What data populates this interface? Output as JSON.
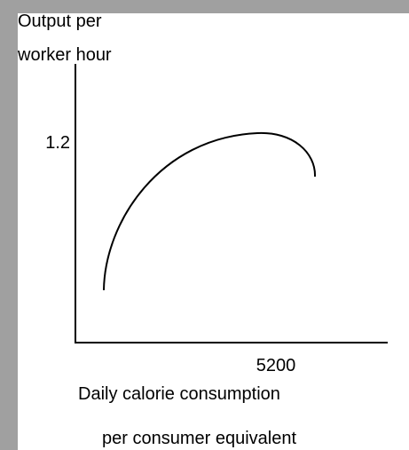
{
  "y_axis_label": [
    "Output per",
    "worker hour"
  ],
  "y_tick": "1.2",
  "x_tick": "5200",
  "x_axis_label": [
    "Daily calorie consumption",
    "per consumer equivalent"
  ]
}
